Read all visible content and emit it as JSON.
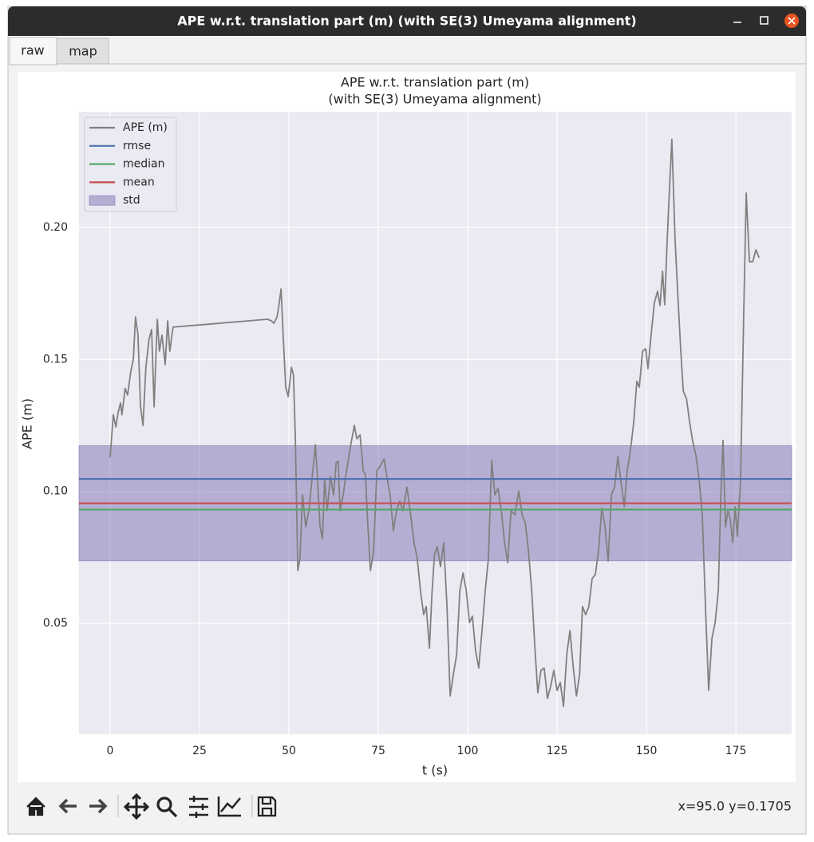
{
  "window": {
    "title": "APE w.r.t. translation part (m) (with SE(3) Umeyama alignment)"
  },
  "tabs": [
    "raw",
    "map"
  ],
  "status": "x=95.0 y=0.1705",
  "chart_data": {
    "type": "line",
    "title": "APE w.r.t. translation part (m)",
    "subtitle": "(with SE(3) Umeyama alignment)",
    "xlabel": "t (s)",
    "ylabel": "APE (m)",
    "xlim": [
      -8.7,
      190.6
    ],
    "ylim": [
      0.008,
      0.2438
    ],
    "xticks": [
      0,
      25,
      50,
      75,
      100,
      125,
      150,
      175
    ],
    "yticks": [
      0.05,
      {
        "value": 0.1,
        "label": "0.10"
      },
      0.15,
      {
        "value": 0.2,
        "label": "0.20"
      }
    ],
    "grid": true,
    "legend": "upper left",
    "x": [
      0,
      0.9,
      1.6,
      2.2,
      2.9,
      3.3,
      4.2,
      4.9,
      5.8,
      6.5,
      7.1,
      7.8,
      8.5,
      9.2,
      10.0,
      10.9,
      11.6,
      12.3,
      13.2,
      13.8,
      14.5,
      15.4,
      16.1,
      16.7,
      17.6,
      44.0,
      45.1,
      45.8,
      46.7,
      47.3,
      47.8,
      48.4,
      49.1,
      49.8,
      50.7,
      51.3,
      51.8,
      52.5,
      53.1,
      53.8,
      54.7,
      55.6,
      56.7,
      57.4,
      58.0,
      58.7,
      59.4,
      60.0,
      60.7,
      61.6,
      62.5,
      63.2,
      63.8,
      64.3,
      65.2,
      65.8,
      66.5,
      67.4,
      68.3,
      69.0,
      69.9,
      70.8,
      71.4,
      72.1,
      72.8,
      73.7,
      74.6,
      75.4,
      76.6,
      77.5,
      78.3,
      79.2,
      80.1,
      81.0,
      81.9,
      83.0,
      83.9,
      85.0,
      85.9,
      86.8,
      87.7,
      88.4,
      89.3,
      90.0,
      90.7,
      91.5,
      92.4,
      93.3,
      94.2,
      95.1,
      96.0,
      96.9,
      97.8,
      98.7,
      99.6,
      100.5,
      101.3,
      102.2,
      103.1,
      104.0,
      104.9,
      105.8,
      106.7,
      107.6,
      108.5,
      109.4,
      110.3,
      111.2,
      112.1,
      113.2,
      114.3,
      115.2,
      116.1,
      117.0,
      117.9,
      118.8,
      119.6,
      120.5,
      121.4,
      122.3,
      123.2,
      124.1,
      125.0,
      125.9,
      126.8,
      127.7,
      128.6,
      129.5,
      130.4,
      131.3,
      132.1,
      133.0,
      133.9,
      134.8,
      135.7,
      136.6,
      137.5,
      138.4,
      139.3,
      140.2,
      141.1,
      142.0,
      142.9,
      143.8,
      144.6,
      145.5,
      146.4,
      147.3,
      148.0,
      148.9,
      149.8,
      150.4,
      151.3,
      152.2,
      153.1,
      153.8,
      154.5,
      155.1,
      155.8,
      156.3,
      157.1,
      158.0,
      158.7,
      159.6,
      160.3,
      161.2,
      162.1,
      163.0,
      163.8,
      164.7,
      165.6,
      166.5,
      167.4,
      168.3,
      169.2,
      170.1,
      170.8,
      171.4,
      172.1,
      172.8,
      173.4,
      174.1,
      174.8,
      175.4,
      176.3,
      177.2,
      177.9,
      178.8,
      179.7,
      180.6,
      181.5
    ],
    "series": [
      {
        "name": "APE (m)",
        "color": "#808080",
        "values": [
          0.1129,
          0.129,
          0.1244,
          0.1295,
          0.1335,
          0.129,
          0.139,
          0.1365,
          0.1456,
          0.15,
          0.1661,
          0.1592,
          0.132,
          0.125,
          0.147,
          0.1577,
          0.1613,
          0.132,
          0.1652,
          0.1531,
          0.1592,
          0.148,
          0.1646,
          0.1531,
          0.1622,
          0.1652,
          0.1646,
          0.1637,
          0.1661,
          0.1713,
          0.1767,
          0.1592,
          0.1395,
          0.1359,
          0.147,
          0.144,
          0.1199,
          0.07,
          0.0745,
          0.0987,
          0.0866,
          0.0927,
          0.1078,
          0.1177,
          0.1048,
          0.0866,
          0.082,
          0.1048,
          0.0927,
          0.1057,
          0.0987,
          0.1108,
          0.1114,
          0.0927,
          0.0987,
          0.1048,
          0.1108,
          0.1184,
          0.125,
          0.1199,
          0.1214,
          0.1078,
          0.1063,
          0.0866,
          0.07,
          0.0775,
          0.1078,
          0.1093,
          0.1123,
          0.1048,
          0.0987,
          0.0851,
          0.0927,
          0.0963,
          0.0927,
          0.1017,
          0.0927,
          0.0806,
          0.0745,
          0.0624,
          0.0533,
          0.0564,
          0.0406,
          0.0609,
          0.076,
          0.079,
          0.0715,
          0.0806,
          0.0564,
          0.0225,
          0.0307,
          0.0382,
          0.0624,
          0.0691,
          0.0624,
          0.0503,
          0.0527,
          0.0397,
          0.0331,
          0.0473,
          0.0624,
          0.0745,
          0.1117,
          0.0987,
          0.1011,
          0.0927,
          0.0806,
          0.073,
          0.0927,
          0.0911,
          0.1002,
          0.0911,
          0.0881,
          0.0775,
          0.0624,
          0.0406,
          0.0237,
          0.0322,
          0.0331,
          0.0216,
          0.0261,
          0.0322,
          0.0246,
          0.0276,
          0.0186,
          0.0382,
          0.0473,
          0.0337,
          0.0225,
          0.0307,
          0.0564,
          0.0533,
          0.0564,
          0.067,
          0.0685,
          0.0775,
          0.0936,
          0.0866,
          0.0736,
          0.0987,
          0.1017,
          0.1132,
          0.1032,
          0.0942,
          0.1078,
          0.1153,
          0.1259,
          0.1417,
          0.1395,
          0.1531,
          0.154,
          0.1465,
          0.1592,
          0.1713,
          0.1758,
          0.1704,
          0.1834,
          0.1707,
          0.1955,
          0.2106,
          0.2333,
          0.1955,
          0.1758,
          0.1531,
          0.138,
          0.135,
          0.1259,
          0.1184,
          0.1138,
          0.1048,
          0.0911,
          0.0564,
          0.0246,
          0.0443,
          0.0503,
          0.0624,
          0.0987,
          0.1193,
          0.0866,
          0.0927,
          0.0896,
          0.0806,
          0.0942,
          0.083,
          0.1032,
          0.1682,
          0.213,
          0.187,
          0.187,
          0.1915,
          0.1885
        ]
      }
    ],
    "stats": [
      {
        "name": "rmse",
        "color": "#4c72b0",
        "value": 0.1047
      },
      {
        "name": "median",
        "color": "#55a868",
        "value": 0.0931
      },
      {
        "name": "mean",
        "color": "#c44e52",
        "value": 0.0955
      }
    ],
    "std": {
      "name": "std",
      "color": "#8172b2",
      "value": 0.0218
    }
  }
}
